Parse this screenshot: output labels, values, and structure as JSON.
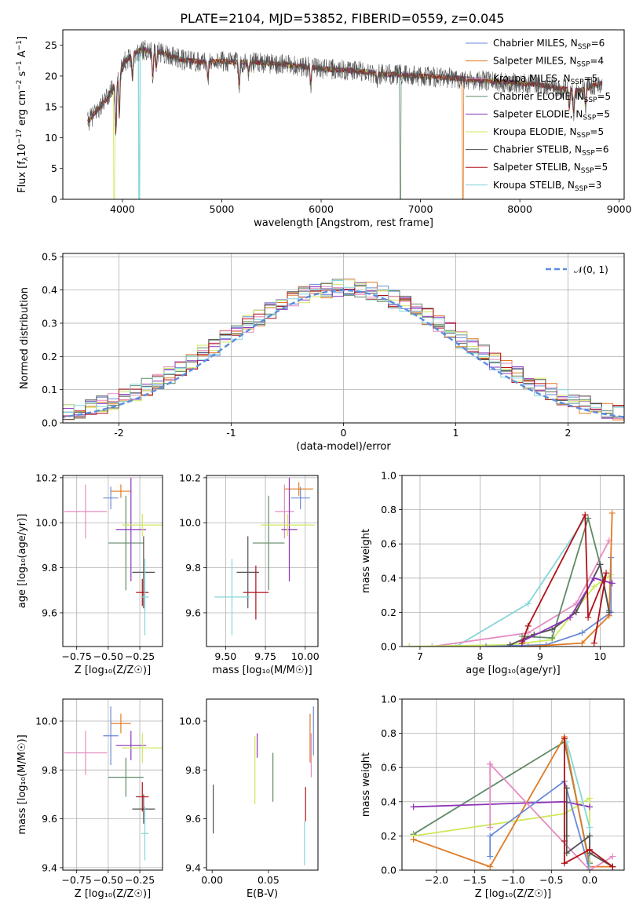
{
  "figure": {
    "title": "PLATE=2104, MJD=53852, FIBERID=0559, z=0.045"
  },
  "colors": {
    "Chabrier MILES": "#6a89d8",
    "Salpeter MILES": "#e07a25",
    "Kroupa MILES": "#e68cc2",
    "Chabrier ELODIE": "#5f8a67",
    "Salpeter ELODIE": "#8e35b8",
    "Kroupa ELODIE": "#cfe85c",
    "Chabrier STELIB": "#505050",
    "Salpeter STELIB": "#b01116",
    "Kroupa STELIB": "#86d6d8",
    "gaussian": "#5b8ee0"
  },
  "chart_data": [
    {
      "id": "spectrum",
      "type": "line",
      "title": "PLATE=2104, MJD=53852, FIBERID=0559, z=0.045",
      "xlabel": "wavelength [Angstrom, rest frame]",
      "ylabel": "Flux [f_λ 10^-17 erg cm^-2 s^-1 A^-1]",
      "xlim": [
        3400,
        9050
      ],
      "ylim": [
        0,
        27.5
      ],
      "xticks": [
        4000,
        5000,
        6000,
        7000,
        8000,
        9000
      ],
      "yticks": [
        0,
        5,
        10,
        15,
        20,
        25
      ],
      "grid": false,
      "legend_position": "upper right",
      "legend": [
        "Chabrier MILES, N_SSP=6",
        "Salpeter MILES, N_SSP=4",
        "Kroupa MILES, N_SSP=5",
        "Chabrier ELODIE, N_SSP=5",
        "Salpeter ELODIE, N_SSP=5",
        "Kroupa ELODIE, N_SSP=5",
        "Chabrier STELIB, N_SSP=6",
        "Salpeter STELIB, N_SSP=5",
        "Kroupa STELIB, N_SSP=3"
      ],
      "continuum": [
        [
          3650,
          12.5
        ],
        [
          3750,
          14.5
        ],
        [
          3850,
          16.5
        ],
        [
          3950,
          19.5
        ],
        [
          4000,
          22
        ],
        [
          4100,
          23.5
        ],
        [
          4200,
          24.3
        ],
        [
          4400,
          23.8
        ],
        [
          4600,
          22.6
        ],
        [
          4800,
          22.3
        ],
        [
          5000,
          22.4
        ],
        [
          5200,
          22.2
        ],
        [
          5400,
          22.2
        ],
        [
          5600,
          21.9
        ],
        [
          5800,
          21.6
        ],
        [
          6000,
          21.2
        ],
        [
          6200,
          21.0
        ],
        [
          6400,
          20.8
        ],
        [
          6600,
          20.3
        ],
        [
          6800,
          20.2
        ],
        [
          7000,
          20.0
        ],
        [
          7200,
          19.8
        ],
        [
          7400,
          19.6
        ],
        [
          7600,
          19.3
        ],
        [
          7800,
          19.1
        ],
        [
          8000,
          18.8
        ],
        [
          8200,
          18.6
        ],
        [
          8400,
          18.0
        ],
        [
          8600,
          17.6
        ],
        [
          8800,
          18.8
        ]
      ],
      "absorption_lines": [
        [
          3934,
          9
        ],
        [
          3969,
          7
        ],
        [
          4101,
          4
        ],
        [
          4305,
          4
        ],
        [
          4340,
          3
        ],
        [
          4861,
          3
        ],
        [
          5175,
          4
        ],
        [
          5270,
          2
        ],
        [
          5895,
          3
        ],
        [
          6563,
          1.5
        ],
        [
          8498,
          3
        ],
        [
          8542,
          4
        ],
        [
          8662,
          3
        ]
      ],
      "model_cutoffs": [
        {
          "series": "Kroupa ELODIE",
          "x": 3910
        },
        {
          "series": "Kroupa STELIB",
          "x": 4165
        },
        {
          "series": "Chabrier ELODIE",
          "x": 6790
        },
        {
          "series": "Salpeter MILES",
          "x": 7420
        }
      ]
    },
    {
      "id": "residuals",
      "type": "line",
      "xlabel": "(data-model)/error",
      "ylabel": "Normed distribution",
      "xlim": [
        -2.5,
        2.5
      ],
      "ylim": [
        0,
        0.51
      ],
      "xticks": [
        -2,
        -1,
        0,
        1,
        2
      ],
      "yticks": [
        0.0,
        0.1,
        0.2,
        0.3,
        0.4,
        0.5
      ],
      "grid": true,
      "legend_position": "upper right",
      "legend": [
        "𝒩(0, 1)"
      ],
      "gaussian": {
        "mean": 0,
        "sigma": 1
      }
    },
    {
      "id": "age_vs_Z",
      "type": "scatter",
      "xlabel": "Z [log₁₀(Z/Z☉)]",
      "ylabel": "age  [log₁₀(age/yr)]",
      "xlim": [
        -0.86,
        -0.07
      ],
      "ylim": [
        9.45,
        10.21
      ],
      "xticks": [
        -0.75,
        -0.5,
        -0.25
      ],
      "xtick_labels": [
        "−0.75",
        "−0.50",
        "−0.25"
      ],
      "yticks": [
        9.6,
        9.8,
        10.0,
        10.2
      ],
      "grid": true,
      "points": [
        {
          "series": "Chabrier MILES",
          "x": -0.48,
          "y": 10.11,
          "xerr": 0.06,
          "yerr": 0.05
        },
        {
          "series": "Salpeter MILES",
          "x": -0.4,
          "y": 10.14,
          "xerr": 0.08,
          "yerr": 0.03
        },
        {
          "series": "Kroupa MILES",
          "x": -0.68,
          "y": 10.05,
          "xerr": 0.17,
          "yerr": 0.12
        },
        {
          "series": "Chabrier ELODIE",
          "x": -0.36,
          "y": 9.91,
          "xerr": 0.14,
          "yerr": 0.21
        },
        {
          "series": "Salpeter ELODIE",
          "x": -0.32,
          "y": 9.97,
          "xerr": 0.12,
          "yerr": 0.23
        },
        {
          "series": "Kroupa ELODIE",
          "x": -0.23,
          "y": 9.99,
          "xerr": 0.16,
          "yerr": 0.05
        },
        {
          "series": "Chabrier STELIB",
          "x": -0.22,
          "y": 9.78,
          "xerr": 0.09,
          "yerr": 0.16
        },
        {
          "series": "Salpeter STELIB",
          "x": -0.23,
          "y": 9.69,
          "xerr": 0.05,
          "yerr": 0.06
        },
        {
          "series": "Kroupa STELIB",
          "x": -0.21,
          "y": 9.67,
          "xerr": 0.03,
          "yerr": 0.17
        }
      ]
    },
    {
      "id": "age_vs_mass",
      "type": "scatter",
      "xlabel": "mass [log₁₀(M/M☉)]",
      "ylabel": "",
      "xlim": [
        9.38,
        10.08
      ],
      "ylim": [
        9.45,
        10.21
      ],
      "xticks": [
        9.5,
        9.75,
        10.0
      ],
      "xtick_labels": [
        "9.50",
        "9.75",
        "10.00"
      ],
      "yticks": [
        9.6,
        9.8,
        10.0,
        10.2
      ],
      "grid": true,
      "points": [
        {
          "series": "Chabrier MILES",
          "x": 9.97,
          "y": 10.11,
          "xerr": 0.06,
          "yerr": 0.05
        },
        {
          "series": "Salpeter MILES",
          "x": 9.96,
          "y": 10.15,
          "xerr": 0.09,
          "yerr": 0.03
        },
        {
          "series": "Kroupa MILES",
          "x": 9.87,
          "y": 10.05,
          "xerr": 0.06,
          "yerr": 0.12
        },
        {
          "series": "Chabrier ELODIE",
          "x": 9.77,
          "y": 9.91,
          "xerr": 0.1,
          "yerr": 0.21
        },
        {
          "series": "Salpeter ELODIE",
          "x": 9.9,
          "y": 9.97,
          "xerr": 0.05,
          "yerr": 0.23
        },
        {
          "series": "Kroupa ELODIE",
          "x": 9.89,
          "y": 9.99,
          "xerr": 0.17,
          "yerr": 0.05
        },
        {
          "series": "Chabrier STELIB",
          "x": 9.64,
          "y": 9.78,
          "xerr": 0.07,
          "yerr": 0.16
        },
        {
          "series": "Salpeter STELIB",
          "x": 9.69,
          "y": 9.69,
          "xerr": 0.08,
          "yerr": 0.12
        },
        {
          "series": "Kroupa STELIB",
          "x": 9.54,
          "y": 9.67,
          "xerr": 0.11,
          "yerr": 0.17
        }
      ]
    },
    {
      "id": "massweight_vs_age",
      "type": "line",
      "xlabel": "age  [log₁₀(age/yr)]",
      "ylabel": "mass weight",
      "xlim": [
        6.7,
        10.4
      ],
      "ylim": [
        0,
        1.0
      ],
      "xticks": [
        7,
        8,
        9,
        10
      ],
      "yticks": [
        0.0,
        0.2,
        0.4,
        0.6,
        0.8,
        1.0
      ],
      "grid": true,
      "series": [
        {
          "name": "Kroupa STELIB",
          "points": [
            [
              6.82,
              0
            ],
            [
              7.6,
              0.0
            ],
            [
              8.8,
              0.25
            ],
            [
              9.75,
              0.75
            ]
          ]
        },
        {
          "name": "Kroupa MILES",
          "points": [
            [
              7.2,
              0
            ],
            [
              8.8,
              0.08
            ],
            [
              9.6,
              0.25
            ],
            [
              10.15,
              0.62
            ]
          ]
        },
        {
          "name": "Kroupa ELODIE",
          "points": [
            [
              6.82,
              0
            ],
            [
              8.5,
              0.01
            ],
            [
              9.2,
              0.04
            ],
            [
              9.9,
              0.35
            ],
            [
              10.18,
              0.42
            ]
          ]
        },
        {
          "name": "Chabrier ELODIE",
          "points": [
            [
              8.7,
              0.06
            ],
            [
              9.2,
              0.05
            ],
            [
              9.8,
              0.75
            ],
            [
              10.0,
              0.48
            ],
            [
              10.15,
              0.21
            ]
          ]
        },
        {
          "name": "Chabrier MILES",
          "points": [
            [
              8.1,
              0
            ],
            [
              9.1,
              0.01
            ],
            [
              9.7,
              0.08
            ],
            [
              10.18,
              0.2
            ],
            [
              10.18,
              0.52
            ]
          ]
        },
        {
          "name": "Salpeter MILES",
          "points": [
            [
              8.8,
              0
            ],
            [
              9.7,
              0.02
            ],
            [
              10.15,
              0.18
            ],
            [
              10.2,
              0.78
            ]
          ]
        },
        {
          "name": "Chabrier STELIB",
          "points": [
            [
              8.5,
              0.01
            ],
            [
              8.9,
              0.07
            ],
            [
              9.2,
              0.1
            ],
            [
              9.6,
              0.2
            ],
            [
              10.0,
              0.48
            ],
            [
              10.15,
              0.2
            ]
          ]
        },
        {
          "name": "Salpeter ELODIE",
          "points": [
            [
              8.7,
              0.03
            ],
            [
              9.5,
              0.17
            ],
            [
              9.9,
              0.4
            ],
            [
              10.2,
              0.37
            ]
          ]
        },
        {
          "name": "Salpeter STELIB",
          "points": [
            [
              8.7,
              0.02
            ],
            [
              8.8,
              0.12
            ],
            [
              9.75,
              0.77
            ],
            [
              9.8,
              0.17
            ],
            [
              10.1,
              0.43
            ],
            [
              9.9,
              0.02
            ]
          ]
        }
      ]
    },
    {
      "id": "mass_vs_Z",
      "type": "scatter",
      "xlabel": "Z [log₁₀(Z/Z☉)]",
      "ylabel": "mass [log₁₀(M/M☉)]",
      "xlim": [
        -0.86,
        -0.07
      ],
      "ylim": [
        9.39,
        10.09
      ],
      "xticks": [
        -0.75,
        -0.5,
        -0.25
      ],
      "xtick_labels": [
        "−0.75",
        "−0.50",
        "−0.25"
      ],
      "yticks": [
        9.4,
        9.6,
        9.8,
        10.0
      ],
      "grid": true,
      "points": [
        {
          "series": "Chabrier MILES",
          "x": -0.48,
          "y": 9.94,
          "xerr": 0.06,
          "yerr": 0.12
        },
        {
          "series": "Salpeter MILES",
          "x": -0.4,
          "y": 9.99,
          "xerr": 0.08,
          "yerr": 0.04
        },
        {
          "series": "Kroupa MILES",
          "x": -0.68,
          "y": 9.87,
          "xerr": 0.17,
          "yerr": 0.09
        },
        {
          "series": "Chabrier ELODIE",
          "x": -0.36,
          "y": 9.77,
          "xerr": 0.14,
          "yerr": 0.08
        },
        {
          "series": "Salpeter ELODIE",
          "x": -0.32,
          "y": 9.9,
          "xerr": 0.12,
          "yerr": 0.06
        },
        {
          "series": "Kroupa ELODIE",
          "x": -0.23,
          "y": 9.89,
          "xerr": 0.16,
          "yerr": 0.06
        },
        {
          "series": "Chabrier STELIB",
          "x": -0.22,
          "y": 9.64,
          "xerr": 0.09,
          "yerr": 0.06
        },
        {
          "series": "Salpeter STELIB",
          "x": -0.23,
          "y": 9.69,
          "xerr": 0.05,
          "yerr": 0.06
        },
        {
          "series": "Kroupa STELIB",
          "x": -0.21,
          "y": 9.54,
          "xerr": 0.03,
          "yerr": 0.11
        }
      ]
    },
    {
      "id": "mass_vs_ebv",
      "type": "scatter",
      "xlabel": "E(B-V)",
      "ylabel": "",
      "xlim": [
        -0.005,
        0.094
      ],
      "ylim": [
        9.39,
        10.09
      ],
      "xticks": [
        0.0,
        0.05
      ],
      "xtick_labels": [
        "0.00",
        "0.05"
      ],
      "yticks": [
        9.4,
        9.6,
        9.8,
        10.0
      ],
      "grid": false,
      "points": [
        {
          "series": "Chabrier MILES",
          "x": 0.09,
          "y": 9.96,
          "yerr": 0.1
        },
        {
          "series": "Salpeter MILES",
          "x": 0.087,
          "y": 9.93,
          "yerr": 0.1
        },
        {
          "series": "Kroupa MILES",
          "x": 0.088,
          "y": 9.86,
          "yerr": 0.09
        },
        {
          "series": "Chabrier ELODIE",
          "x": 0.054,
          "y": 9.77,
          "yerr": 0.1
        },
        {
          "series": "Salpeter ELODIE",
          "x": 0.04,
          "y": 9.9,
          "yerr": 0.05
        },
        {
          "series": "Kroupa ELODIE",
          "x": 0.038,
          "y": 9.8,
          "yerr": 0.14
        },
        {
          "series": "Chabrier STELIB",
          "x": 0.001,
          "y": 9.64,
          "yerr": 0.1
        },
        {
          "series": "Salpeter STELIB",
          "x": 0.083,
          "y": 9.66,
          "yerr": 0.07
        },
        {
          "series": "Kroupa STELIB",
          "x": 0.082,
          "y": 9.5,
          "yerr": 0.09
        }
      ]
    },
    {
      "id": "massweight_vs_Z",
      "type": "line",
      "xlabel": "Z [log₁₀(Z/Z☉)]",
      "ylabel": "mass weight",
      "xlim": [
        -2.45,
        0.45
      ],
      "ylim": [
        0,
        1.0
      ],
      "xticks": [
        -2.0,
        -1.5,
        -1.0,
        -0.5,
        0.0
      ],
      "xtick_labels": [
        "−2.0",
        "−1.5",
        "−1.0",
        "−0.5",
        "0.0"
      ],
      "yticks": [
        0.0,
        0.2,
        0.4,
        0.6,
        0.8,
        1.0
      ],
      "grid": true,
      "series": [
        {
          "name": "Chabrier ELODIE",
          "points": [
            [
              -2.3,
              0.21
            ],
            [
              -0.33,
              0.75
            ],
            [
              0.0,
              0.04
            ]
          ]
        },
        {
          "name": "Kroupa ELODIE",
          "points": [
            [
              -2.3,
              0.2
            ],
            [
              -0.33,
              0.33
            ],
            [
              0.0,
              0.42
            ],
            [
              0.0,
              0.05
            ]
          ]
        },
        {
          "name": "Salpeter MILES",
          "points": [
            [
              -2.3,
              0.18
            ],
            [
              -1.3,
              0.02
            ],
            [
              -0.33,
              0.78
            ],
            [
              0.0,
              0.02
            ],
            [
              0.3,
              0.02
            ]
          ]
        },
        {
          "name": "Salpeter ELODIE",
          "points": [
            [
              -2.3,
              0.37
            ],
            [
              -0.33,
              0.4
            ],
            [
              0.0,
              0.37
            ]
          ]
        },
        {
          "name": "Chabrier MILES",
          "points": [
            [
              -1.3,
              0.08
            ],
            [
              -1.3,
              0.2
            ],
            [
              -0.33,
              0.52
            ],
            [
              0.0,
              0.0
            ]
          ]
        },
        {
          "name": "Kroupa MILES",
          "points": [
            [
              -1.3,
              0.62
            ],
            [
              -1.3,
              0.25
            ],
            [
              -1.3,
              0.62
            ],
            [
              0.0,
              0.0
            ],
            [
              0.3,
              0.08
            ]
          ]
        },
        {
          "name": "Kroupa STELIB",
          "points": [
            [
              -0.3,
              0.75
            ],
            [
              0.0,
              0.25
            ],
            [
              0.0,
              0.0
            ]
          ]
        },
        {
          "name": "Chabrier STELIB",
          "points": [
            [
              -0.3,
              0.2
            ],
            [
              -0.3,
              0.48
            ],
            [
              -0.3,
              0.1
            ],
            [
              0.0,
              0.2
            ],
            [
              0.0,
              0.1
            ],
            [
              0.3,
              0.02
            ]
          ]
        },
        {
          "name": "Salpeter STELIB",
          "points": [
            [
              -0.33,
              0.77
            ],
            [
              -0.33,
              0.17
            ],
            [
              -0.33,
              0.04
            ],
            [
              0.0,
              0.12
            ],
            [
              0.3,
              0.02
            ]
          ]
        }
      ]
    }
  ]
}
